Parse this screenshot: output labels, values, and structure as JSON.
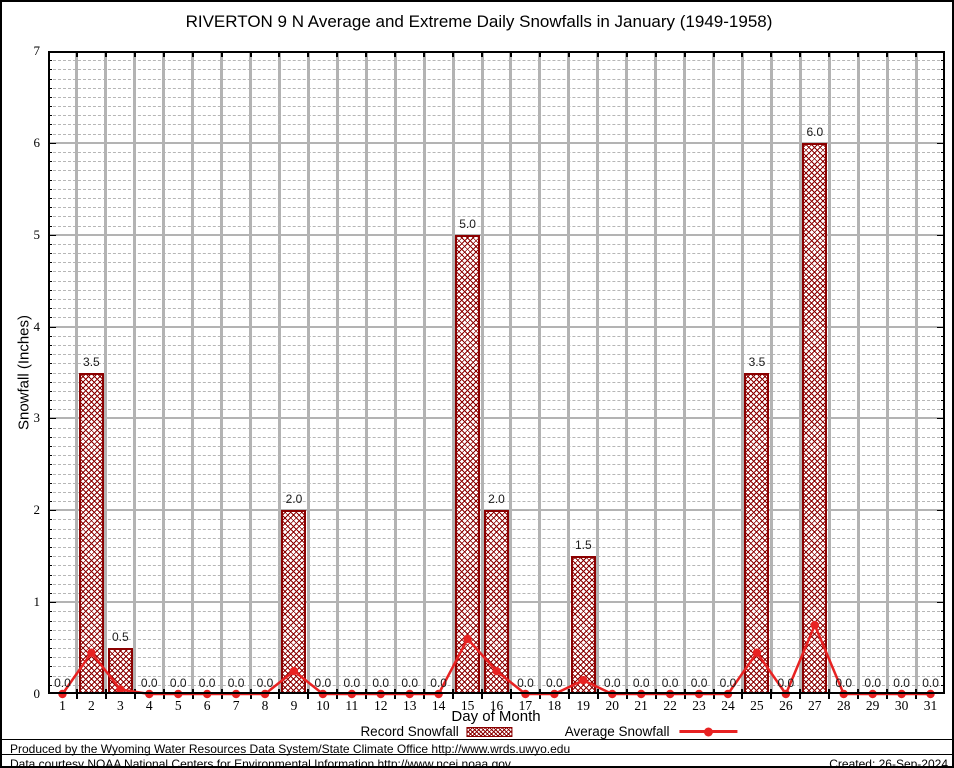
{
  "title": "RIVERTON 9 N Average and Extreme Daily Snowfalls in January (1949-1958)",
  "chart_data": {
    "type": "bar",
    "title": "RIVERTON 9 N Average and Extreme Daily Snowfalls in January (1949-1958)",
    "xlabel": "Day of Month",
    "ylabel": "Snowfall (Inches)",
    "ylim": [
      0,
      7
    ],
    "yticks": [
      0,
      1,
      2,
      3,
      4,
      5,
      6,
      7
    ],
    "grid": {
      "major": "solid-gray",
      "minor": "dashed-gray",
      "minor_step": 0.1,
      "vertical": "solid-gray-at-day-boundaries"
    },
    "legend_position": "bottom",
    "value_labels": "every day labeled with one decimal above bar",
    "categories": [
      1,
      2,
      3,
      4,
      5,
      6,
      7,
      8,
      9,
      10,
      11,
      12,
      13,
      14,
      15,
      16,
      17,
      18,
      19,
      20,
      21,
      22,
      23,
      24,
      25,
      26,
      27,
      28,
      29,
      30,
      31
    ],
    "series": [
      {
        "name": "Record Snowfall",
        "type": "bar",
        "color": "#8b0000",
        "fill": "crosshatch",
        "values": [
          0.0,
          3.5,
          0.5,
          0.0,
          0.0,
          0.0,
          0.0,
          0.0,
          2.0,
          0.0,
          0.0,
          0.0,
          0.0,
          0.0,
          5.0,
          2.0,
          0.0,
          0.0,
          1.5,
          0.0,
          0.0,
          0.0,
          0.0,
          0.0,
          3.5,
          0.0,
          6.0,
          0.0,
          0.0,
          0.0,
          0.0
        ]
      },
      {
        "name": "Average Snowfall",
        "type": "line",
        "color": "#e82222",
        "marker": "circle",
        "values": [
          0.0,
          0.45,
          0.05,
          0.0,
          0.0,
          0.0,
          0.0,
          0.0,
          0.25,
          0.0,
          0.0,
          0.0,
          0.0,
          0.0,
          0.6,
          0.25,
          0.0,
          0.0,
          0.15,
          0.0,
          0.0,
          0.0,
          0.0,
          0.0,
          0.45,
          0.0,
          0.75,
          0.0,
          0.0,
          0.0,
          0.0
        ]
      }
    ]
  },
  "footer": {
    "line1": "Produced by the Wyoming Water Resources Data System/State Climate Office http://www.wrds.uwyo.edu",
    "line2": "Data courtesy NOAA National Centers for Environmental Information http://www.ncei.noaa.gov",
    "created": "Created: 26-Sep-2024"
  }
}
